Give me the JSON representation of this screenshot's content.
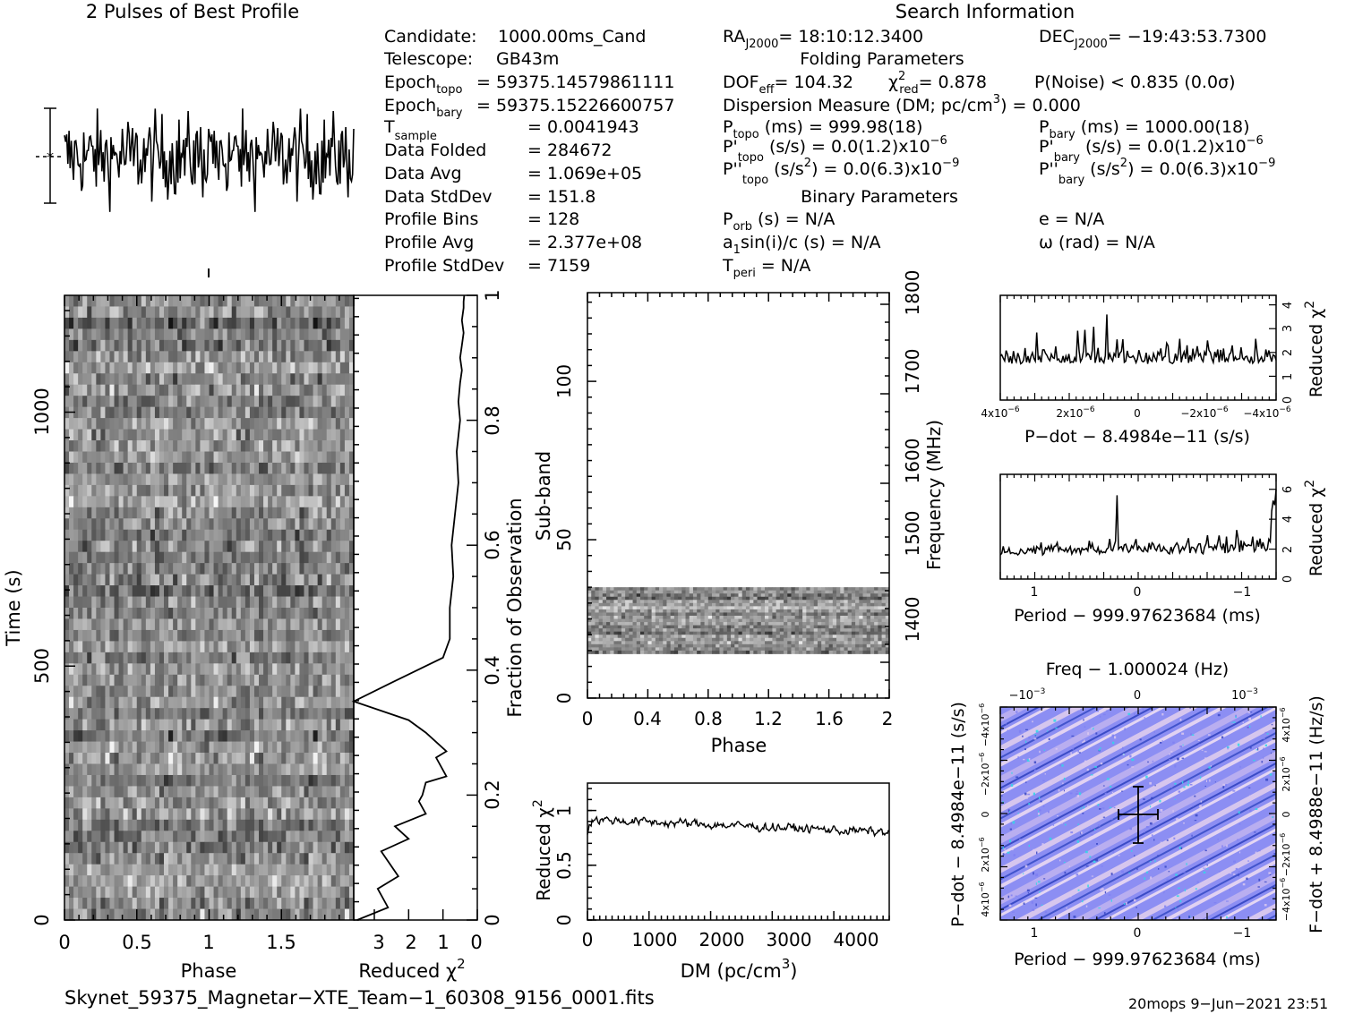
{
  "header": {
    "pulses_title": "2 Pulses of Best Profile",
    "search_title": "Search Information",
    "folding_title": "Folding Parameters",
    "binary_title": "Binary Parameters"
  },
  "info_left": [
    {
      "label": "Candidate:",
      "value": "1000.00ms_Cand"
    },
    {
      "label": "Telescope:",
      "value": "GB43m"
    },
    {
      "label": "Epoch",
      "sub": "topo",
      "value": "= 59375.14579861111"
    },
    {
      "label": "Epoch",
      "sub": "bary",
      "value": "= 59375.15226600757"
    },
    {
      "label": "T",
      "sub": "sample",
      "value": "=   0.0041943"
    },
    {
      "label": "Data Folded",
      "value": "=   284672"
    },
    {
      "label": "Data Avg",
      "value": "=   1.069e+05"
    },
    {
      "label": "Data StdDev",
      "value": "=   151.8"
    },
    {
      "label": "Profile Bins",
      "value": "=   128"
    },
    {
      "label": "Profile Avg",
      "value": "=   2.377e+08"
    },
    {
      "label": "Profile StdDev",
      "value": "=   7159"
    }
  ],
  "info_right": {
    "ra": "= 18:10:12.3400",
    "dec": "= −19:43:53.7300",
    "dof": "= 104.32",
    "chi2red": "= 0.878",
    "pnoise": "P(Noise) < 0.835   (0.0σ)",
    "dm_text": "Dispersion Measure (DM; pc/cm",
    "dm_value": ") = 0.000",
    "ptopo": "(ms)  =   999.98(18)",
    "pbary": "(ms)  =   1000.00(18)",
    "pdtopo": "(s/s) = 0.0(1.2)x10",
    "pdbary": "(s/s) = 0.0(1.2)x10",
    "pddtopo": "(s/s",
    "pddtopo_val": ") = 0.0(6.3)x10",
    "pddbary_val": ") = 0.0(6.3)x10",
    "porb": "(s) = N/A",
    "ecc": "e = N/A",
    "a1": "sin(i)/c (s) = N/A",
    "omega": "ω (rad) = N/A",
    "tperi": "= N/A"
  },
  "footer": {
    "filename": "Skynet_59375_Magnetar−XTE_Team−1_60308_9156_0001.fits",
    "stamp": "20mops  9−Jun−2021 23:51"
  },
  "chart_data": [
    {
      "id": "profile",
      "type": "line",
      "title": "2 Pulses of Best Profile",
      "x": "phase 0-2 (256 bins)",
      "note": "noise-like profile, two identical pulses"
    },
    {
      "id": "time_phase",
      "type": "heatmap",
      "xlabel": "Phase",
      "ylabel": "Time (s)",
      "xlim": [
        0,
        2
      ],
      "ylim": [
        0,
        1230
      ],
      "x_ticks": [
        "0",
        "0.5",
        "1",
        "1.5"
      ],
      "y_ticks": [
        "0",
        "500",
        "1000"
      ]
    },
    {
      "id": "time_chi2",
      "type": "line",
      "xlabel": "Reduced χ",
      "ylabel": "Fraction of Observation",
      "xlim": [
        3.6,
        0
      ],
      "ylim": [
        0,
        1
      ],
      "x_ticks": [
        "3",
        "2",
        "1",
        "0"
      ],
      "y_ticks": [
        "0",
        "0.2",
        "0.4",
        "0.6",
        "0.8",
        "1"
      ],
      "x": [
        3.5,
        2.6,
        2.9,
        2.3,
        2.8,
        2.0,
        2.4,
        1.5,
        1.7,
        1.6,
        1.5,
        0.9,
        1.2,
        0.9,
        1.5,
        2.0,
        3.6,
        2.5,
        1.0,
        0.8,
        0.8,
        0.7,
        0.75,
        0.65,
        0.55,
        0.6,
        0.5,
        0.55,
        0.5,
        0.45,
        0.5,
        0.45,
        0.4,
        0.45,
        0.4,
        0.4,
        0.38
      ],
      "y": [
        0,
        0.02,
        0.05,
        0.07,
        0.11,
        0.13,
        0.15,
        0.17,
        0.19,
        0.2,
        0.22,
        0.23,
        0.26,
        0.27,
        0.3,
        0.32,
        0.35,
        0.38,
        0.42,
        0.45,
        0.5,
        0.55,
        0.6,
        0.65,
        0.7,
        0.75,
        0.8,
        0.83,
        0.86,
        0.88,
        0.9,
        0.92,
        0.94,
        0.96,
        0.98,
        0.99,
        1.0
      ]
    },
    {
      "id": "subband_phase",
      "type": "heatmap",
      "xlabel": "Phase",
      "ylabel": "Sub-band",
      "y2label": "Frequency (MHz)",
      "xlim": [
        0,
        2
      ],
      "ylim": [
        0,
        128
      ],
      "x_ticks": [
        "0",
        "0.4",
        "0.8",
        "1.2",
        "1.6",
        "2"
      ],
      "y_ticks": [
        "0",
        "50",
        "100"
      ],
      "y2_ticks": [
        "1400",
        "1500",
        "1600",
        "1700",
        "1800"
      ],
      "band_range": [
        14,
        35
      ]
    },
    {
      "id": "dm_chi2",
      "type": "line",
      "xlabel": "DM (pc/cm",
      "ylabel": "Reduced χ",
      "xlim": [
        0,
        4900
      ],
      "ylim": [
        0,
        1.25
      ],
      "x_ticks": [
        "0",
        "1000",
        "2000",
        "3000",
        "4000"
      ],
      "y_ticks": [
        "0",
        "0.5",
        "1"
      ]
    },
    {
      "id": "pdot_chi2",
      "type": "line",
      "xlabel": "P−dot − 8.4984e−11 (s/s)",
      "ylabel": "Reduced χ",
      "ylim": [
        0,
        4.4
      ],
      "y_ticks": [
        "0",
        "1",
        "2",
        "3",
        "4"
      ]
    },
    {
      "id": "period_chi2",
      "type": "line",
      "xlabel": "Period − 999.97623684 (ms)",
      "ylabel": "Reduced χ",
      "ylim": [
        0,
        7
      ],
      "x_ticks": [
        "1",
        "0",
        "−1"
      ],
      "y_ticks": [
        "0",
        "2",
        "4",
        "6"
      ]
    },
    {
      "id": "p_pdot",
      "type": "heatmap",
      "xlabel": "Period − 999.97623684 (ms)",
      "x2label": "Freq − 1.000024 (Hz)",
      "ylabel": "P−dot − 8.4984e−11 (s/s)",
      "y2label": "F−dot + 8.4988e−11 (Hz/s)",
      "x_ticks": [
        "1",
        "0",
        "−1"
      ],
      "colors": [
        "#7f80f2",
        "#d9c8f0",
        "#3a48c4",
        "#2fd8e8"
      ]
    }
  ]
}
